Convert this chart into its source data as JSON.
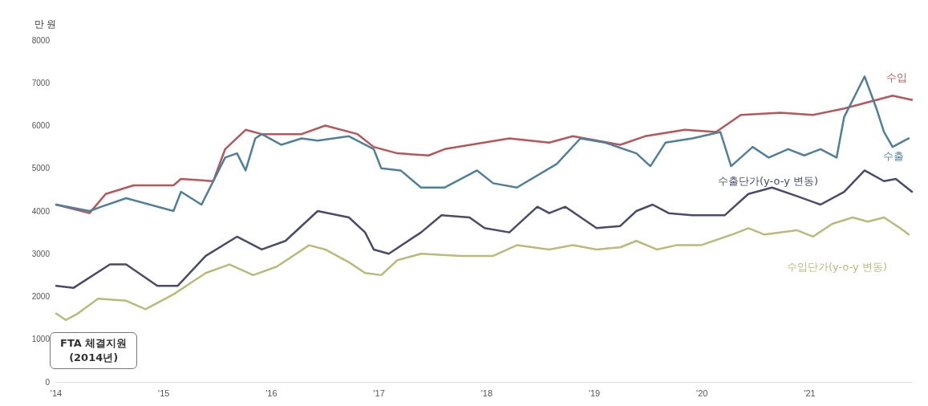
{
  "chart_data": {
    "type": "line",
    "ylabel": "만 원",
    "xlim": [
      2014,
      2021.95
    ],
    "xticks": [
      {
        "value": 2014,
        "label": "'14"
      },
      {
        "value": 2015,
        "label": "'15"
      },
      {
        "value": 2016,
        "label": "'16"
      },
      {
        "value": 2017,
        "label": "'17"
      },
      {
        "value": 2018,
        "label": "'18"
      },
      {
        "value": 2019,
        "label": "'19"
      },
      {
        "value": 2020,
        "label": "'20"
      },
      {
        "value": 2021,
        "label": "'21"
      }
    ],
    "ylim": [
      0,
      8000
    ],
    "yticks": [
      0,
      1000,
      2000,
      3000,
      4000,
      5000,
      6000,
      7000,
      8000
    ],
    "grid": false,
    "legend": false,
    "marker": "none",
    "line_style": "solid",
    "annotations": [
      "FTA 체결지원\n(2014년)"
    ],
    "series": [
      {
        "name": "수입",
        "color": "#b5565a",
        "x": [
          2014.0,
          2014.31,
          2014.46,
          2014.72,
          2015.09,
          2015.16,
          2015.46,
          2015.57,
          2015.76,
          2015.91,
          2016.28,
          2016.5,
          2016.8,
          2016.95,
          2017.17,
          2017.46,
          2017.61,
          2018.21,
          2018.58,
          2018.8,
          2019.24,
          2019.47,
          2019.84,
          2020.13,
          2020.36,
          2020.73,
          2021.03,
          2021.32,
          2021.77,
          2021.95
        ],
        "values": [
          4150,
          3950,
          4400,
          4600,
          4600,
          4750,
          4700,
          5450,
          5900,
          5800,
          5800,
          6000,
          5800,
          5500,
          5350,
          5300,
          5450,
          5700,
          5600,
          5750,
          5550,
          5750,
          5900,
          5850,
          6250,
          6300,
          6250,
          6400,
          6700,
          6600
        ]
      },
      {
        "name": "수출",
        "color": "#4f7f9a",
        "x": [
          2014.0,
          2014.31,
          2014.42,
          2014.65,
          2015.09,
          2015.16,
          2015.35,
          2015.57,
          2015.68,
          2015.76,
          2015.85,
          2015.91,
          2016.09,
          2016.28,
          2016.43,
          2016.72,
          2016.95,
          2017.02,
          2017.2,
          2017.39,
          2017.61,
          2017.91,
          2018.06,
          2018.28,
          2018.65,
          2018.87,
          2019.1,
          2019.39,
          2019.52,
          2019.66,
          2019.91,
          2020.17,
          2020.27,
          2020.47,
          2020.62,
          2020.8,
          2020.95,
          2021.1,
          2021.25,
          2021.32,
          2021.51,
          2021.62,
          2021.69,
          2021.77,
          2021.92
        ],
        "values": [
          4150,
          4000,
          4100,
          4300,
          4000,
          4450,
          4150,
          5250,
          5350,
          4950,
          5700,
          5800,
          5550,
          5700,
          5650,
          5750,
          5450,
          5000,
          4950,
          4550,
          4550,
          4950,
          4650,
          4550,
          5100,
          5700,
          5600,
          5350,
          5050,
          5600,
          5700,
          5850,
          5050,
          5500,
          5250,
          5450,
          5300,
          5450,
          5250,
          6200,
          7150,
          6400,
          5850,
          5500,
          5700
        ]
      },
      {
        "name": "수출단가(y-o-y 변동)",
        "color": "#4a4a6a",
        "x": [
          2014.0,
          2014.16,
          2014.5,
          2014.65,
          2014.94,
          2015.13,
          2015.39,
          2015.68,
          2015.91,
          2016.13,
          2016.43,
          2016.72,
          2016.87,
          2016.95,
          2017.09,
          2017.39,
          2017.58,
          2017.84,
          2017.98,
          2018.21,
          2018.47,
          2018.58,
          2018.73,
          2019.02,
          2019.24,
          2019.39,
          2019.54,
          2019.69,
          2019.91,
          2020.21,
          2020.43,
          2020.65,
          2020.88,
          2021.1,
          2021.32,
          2021.51,
          2021.69,
          2021.8,
          2021.95
        ],
        "values": [
          2250,
          2200,
          2750,
          2750,
          2250,
          2250,
          2950,
          3400,
          3100,
          3300,
          4000,
          3850,
          3500,
          3100,
          3000,
          3500,
          3900,
          3850,
          3600,
          3500,
          4100,
          3950,
          4100,
          3600,
          3650,
          4000,
          4150,
          3950,
          3900,
          3900,
          4400,
          4550,
          4350,
          4150,
          4450,
          4950,
          4700,
          4750,
          4450
        ]
      },
      {
        "name": "수입단가(y-o-y 변동)",
        "color": "#b8bb7a",
        "x": [
          2014.0,
          2014.09,
          2014.2,
          2014.39,
          2014.65,
          2014.83,
          2015.09,
          2015.39,
          2015.61,
          2015.83,
          2016.05,
          2016.35,
          2016.5,
          2016.72,
          2016.87,
          2017.02,
          2017.17,
          2017.39,
          2017.76,
          2018.06,
          2018.28,
          2018.58,
          2018.8,
          2019.02,
          2019.24,
          2019.39,
          2019.58,
          2019.76,
          2019.99,
          2020.28,
          2020.43,
          2020.58,
          2020.88,
          2021.03,
          2021.21,
          2021.4,
          2021.54,
          2021.69,
          2021.84,
          2021.92
        ],
        "values": [
          1600,
          1450,
          1600,
          1950,
          1900,
          1700,
          2050,
          2550,
          2750,
          2500,
          2700,
          3200,
          3100,
          2800,
          2550,
          2500,
          2850,
          3000,
          2950,
          2950,
          3200,
          3100,
          3200,
          3100,
          3150,
          3300,
          3100,
          3200,
          3200,
          3450,
          3600,
          3450,
          3550,
          3400,
          3700,
          3850,
          3750,
          3850,
          3600,
          3450
        ]
      }
    ]
  }
}
